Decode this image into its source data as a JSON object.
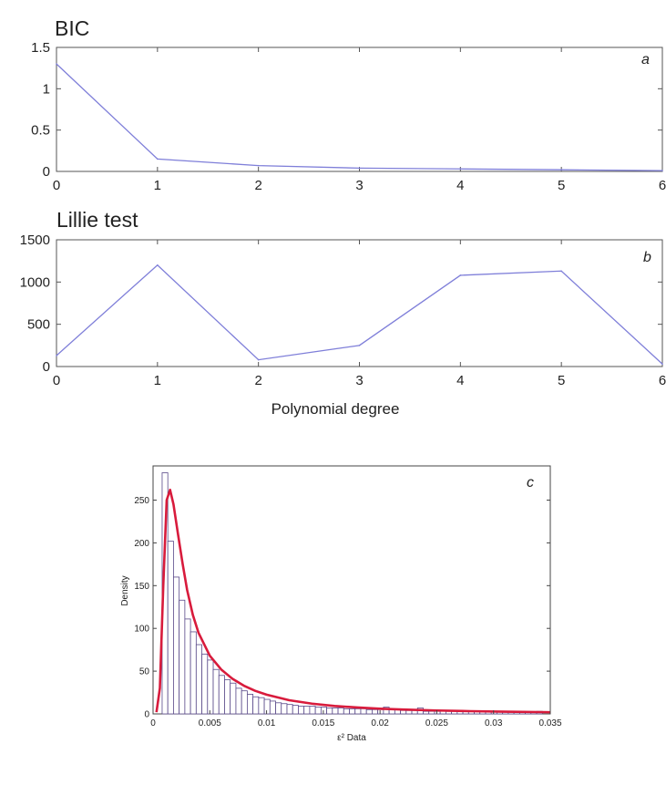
{
  "chart_data": [
    {
      "type": "line",
      "title": "BIC",
      "panel_label": "a",
      "xlabel": "",
      "ylabel": "",
      "x": [
        0,
        1,
        2,
        3,
        4,
        5,
        6
      ],
      "series": [
        {
          "color": "#7f7fd9",
          "values": [
            1.3,
            0.15,
            0.07,
            0.04,
            0.03,
            0.02,
            0.01
          ]
        }
      ],
      "xlim": [
        0,
        6
      ],
      "ylim": [
        0,
        1.5
      ],
      "xticks": [
        "0",
        "1",
        "2",
        "3",
        "4",
        "5",
        "6"
      ],
      "yticks": [
        {
          "value": 0,
          "label": "0"
        },
        {
          "value": 0.5,
          "label": "0.5"
        },
        {
          "value": 1,
          "label": "1"
        },
        {
          "value": 1.5,
          "label": "1.5"
        }
      ],
      "grid": false
    },
    {
      "type": "line",
      "title": "Lillie test",
      "panel_label": "b",
      "xlabel": "Polynomial degree",
      "ylabel": "",
      "x": [
        0,
        1,
        2,
        3,
        4,
        5,
        6
      ],
      "series": [
        {
          "color": "#7f7fd9",
          "values": [
            130,
            1200,
            80,
            250,
            1080,
            1130,
            30
          ]
        }
      ],
      "xlim": [
        0,
        6
      ],
      "ylim": [
        0,
        1500
      ],
      "xticks": [
        "0",
        "1",
        "2",
        "3",
        "4",
        "5",
        "6"
      ],
      "yticks": [
        {
          "value": 0,
          "label": "0"
        },
        {
          "value": 500,
          "label": "500"
        },
        {
          "value": 1000,
          "label": "1000"
        },
        {
          "value": 1500,
          "label": "1500"
        }
      ],
      "grid": false
    },
    {
      "type": "histogram",
      "title": "",
      "panel_label": "c",
      "xlabel": "ε² Data",
      "ylabel": "Density",
      "xlim": [
        0,
        0.035
      ],
      "ylim": [
        0,
        290
      ],
      "bin_start": 0.0008,
      "bin_width": 0.0005,
      "bar_values": [
        282,
        202,
        160,
        133,
        111,
        96,
        81,
        70,
        63,
        52,
        45,
        40,
        36,
        30,
        27,
        23,
        20,
        19,
        17,
        15,
        13,
        12,
        11,
        10,
        9,
        9,
        9,
        8,
        8,
        7,
        7,
        7,
        6,
        6,
        6,
        6,
        5,
        5,
        5,
        8,
        5,
        5,
        4,
        4,
        4,
        7,
        3,
        3,
        3,
        4,
        3,
        3,
        3,
        3,
        3,
        3,
        3,
        3,
        2,
        2,
        2,
        2,
        2,
        2,
        2,
        2,
        3
      ],
      "bar_color": "#5a4a8a",
      "fit_color": "#d81b3c",
      "fit_curve": {
        "x": [
          0.0003,
          0.0006,
          0.0009,
          0.0012,
          0.0015,
          0.0018,
          0.0022,
          0.0026,
          0.003,
          0.0035,
          0.004,
          0.005,
          0.006,
          0.007,
          0.008,
          0.009,
          0.01,
          0.012,
          0.014,
          0.016,
          0.018,
          0.02,
          0.022,
          0.025,
          0.028,
          0.031,
          0.035
        ],
        "y": [
          2,
          30,
          150,
          250,
          262,
          245,
          210,
          176,
          145,
          116,
          95,
          68,
          52,
          41,
          33,
          27,
          22.5,
          16,
          12,
          9.3,
          7.5,
          6.1,
          5.1,
          4,
          3.2,
          2.6,
          2
        ]
      },
      "xticks": [
        {
          "value": 0,
          "label": "0"
        },
        {
          "value": 0.005,
          "label": "0.005"
        },
        {
          "value": 0.01,
          "label": "0.01"
        },
        {
          "value": 0.015,
          "label": "0.015"
        },
        {
          "value": 0.02,
          "label": "0.02"
        },
        {
          "value": 0.025,
          "label": "0.025"
        },
        {
          "value": 0.03,
          "label": "0.03"
        },
        {
          "value": 0.035,
          "label": "0.035"
        }
      ],
      "yticks": [
        {
          "value": 0,
          "label": "0"
        },
        {
          "value": 50,
          "label": "50"
        },
        {
          "value": 100,
          "label": "100"
        },
        {
          "value": 150,
          "label": "150"
        },
        {
          "value": 200,
          "label": "200"
        },
        {
          "value": 250,
          "label": "250"
        }
      ],
      "grid": false
    }
  ]
}
